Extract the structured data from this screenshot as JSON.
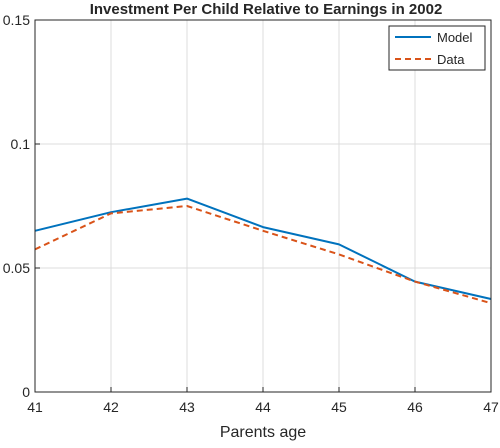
{
  "chart_data": {
    "type": "line",
    "title": "Investment Per Child Relative to Earnings in 2002",
    "xlabel": "Parents age",
    "ylabel": "",
    "xlim": [
      41,
      47
    ],
    "ylim": [
      0,
      0.15
    ],
    "x_ticks": [
      "41",
      "42",
      "43",
      "44",
      "45",
      "46",
      "47"
    ],
    "y_ticks": [
      "0",
      "0.05",
      "0.1",
      "0.15"
    ],
    "grid": true,
    "legend_position": "top-right",
    "x": [
      41,
      42,
      43,
      44,
      45,
      46,
      47
    ],
    "series": [
      {
        "name": "Model",
        "values": [
          0.065,
          0.0725,
          0.078,
          0.0665,
          0.0595,
          0.0445,
          0.0375
        ],
        "color": "#0072BD",
        "style": "solid"
      },
      {
        "name": "Data",
        "values": [
          0.0575,
          0.072,
          0.075,
          0.065,
          0.0555,
          0.0445,
          0.0358
        ],
        "color": "#D95319",
        "style": "dashed"
      }
    ]
  }
}
